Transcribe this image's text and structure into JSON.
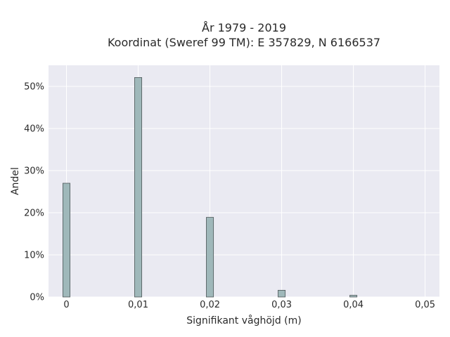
{
  "chart_data": {
    "type": "bar",
    "title": "År 1979 - 2019",
    "subtitle": "Koordinat (Sweref 99 TM): E 357829, N 6166537",
    "xlabel": "Signifikant våghöjd (m)",
    "ylabel": "Andel",
    "x": [
      0,
      0.01,
      0.02,
      0.03,
      0.04
    ],
    "values": [
      27.0,
      52.1,
      18.9,
      1.6,
      0.4
    ],
    "xlim": [
      -0.0025,
      0.052
    ],
    "ylim": [
      0,
      55
    ],
    "x_ticks": [
      0,
      0.01,
      0.02,
      0.03,
      0.04,
      0.05
    ],
    "x_tick_labels": [
      "0",
      "0,01",
      "0,02",
      "0,03",
      "0,04",
      "0,05"
    ],
    "y_ticks": [
      0,
      10,
      20,
      30,
      40,
      50
    ],
    "y_tick_labels": [
      "0%",
      "10%",
      "20%",
      "30%",
      "40%",
      "50%"
    ],
    "grid": true,
    "colors": {
      "bar_fill": "#9fb8ba",
      "bar_edge": "#4d5658",
      "plot_bg": "#eaeaf2",
      "grid": "#ffffff"
    }
  }
}
